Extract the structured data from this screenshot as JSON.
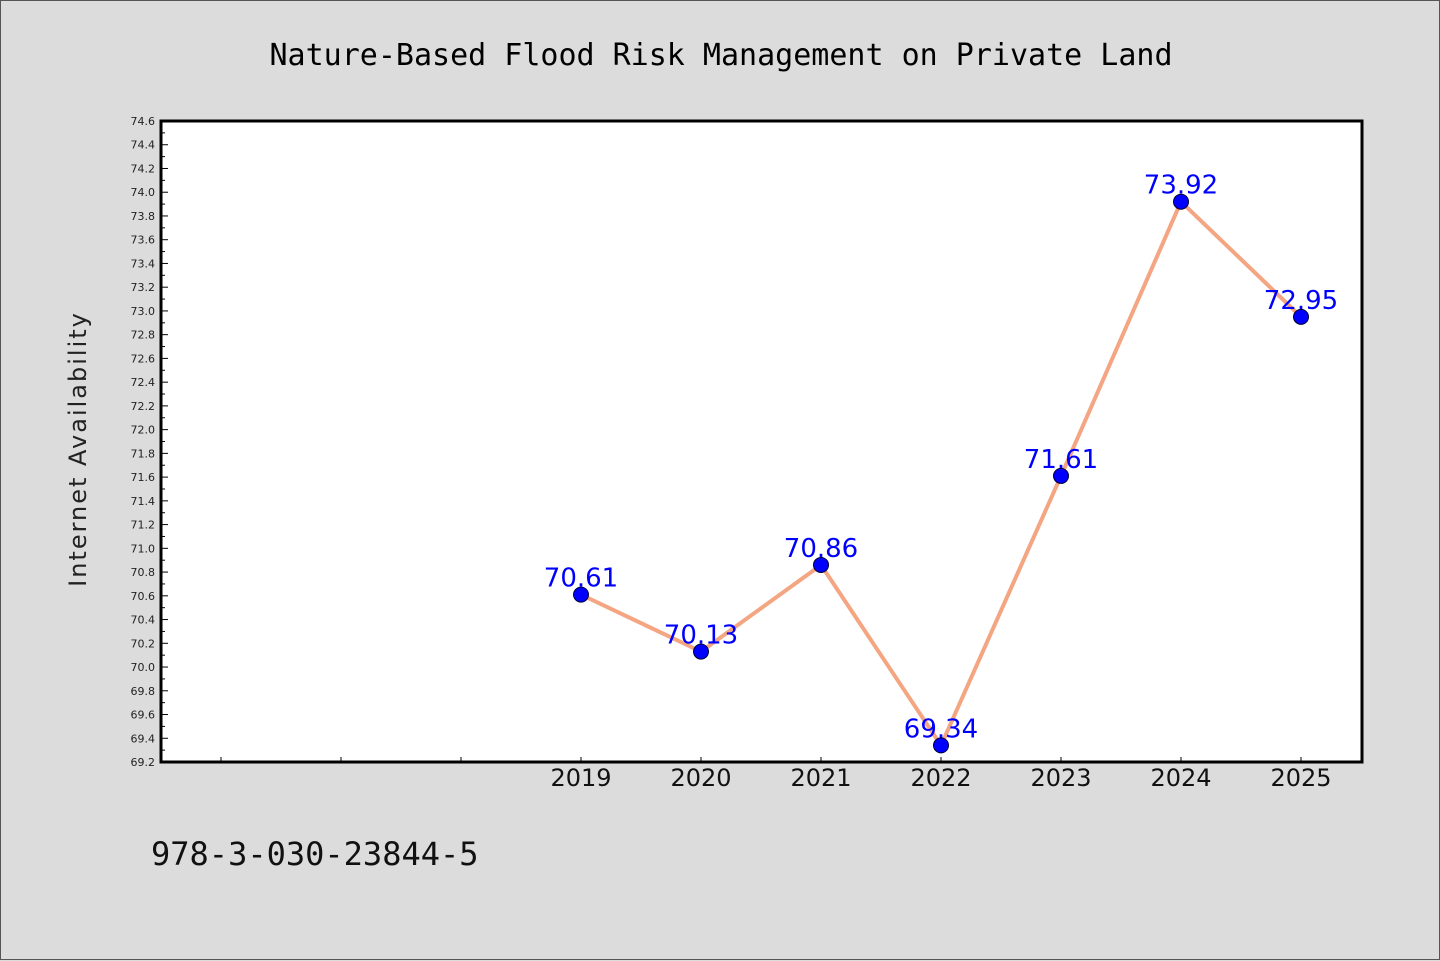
{
  "chart_data": {
    "type": "line",
    "title": "Nature-Based Flood Risk Management on Private Land",
    "xlabel": "",
    "ylabel": "Internet Availability",
    "categories": [
      "2019",
      "2020",
      "2021",
      "2022",
      "2023",
      "2024",
      "2025"
    ],
    "series": [
      {
        "values": [
          70.61,
          70.13,
          70.86,
          69.34,
          71.61,
          73.92,
          72.95
        ],
        "data_labels": [
          "70.61",
          "70.13",
          "70.86",
          "69.34",
          "71.61",
          "73.92",
          "72.95"
        ],
        "line_color": "#f4a582",
        "marker_color": "#0000ff"
      }
    ],
    "ylim": [
      69.2,
      74.6
    ],
    "yticks": [
      "69.2",
      "69.4",
      "69.6",
      "69.8",
      "70.0",
      "70.2",
      "70.4",
      "70.6",
      "70.8",
      "71.0",
      "71.2",
      "71.4",
      "71.6",
      "71.8",
      "72.0",
      "72.2",
      "72.4",
      "72.6",
      "72.8",
      "73.0",
      "73.2",
      "73.4",
      "73.6",
      "73.8",
      "74.0",
      "74.2",
      "74.4",
      "74.6"
    ],
    "empty_leading_slots": 3,
    "grid": false,
    "legend": "none"
  },
  "footer": {
    "isbn": "978-3-030-23844-5"
  },
  "colors": {
    "background": "#dcdcdc",
    "plot_background": "#ffffff",
    "label_color": "#0000ff"
  }
}
